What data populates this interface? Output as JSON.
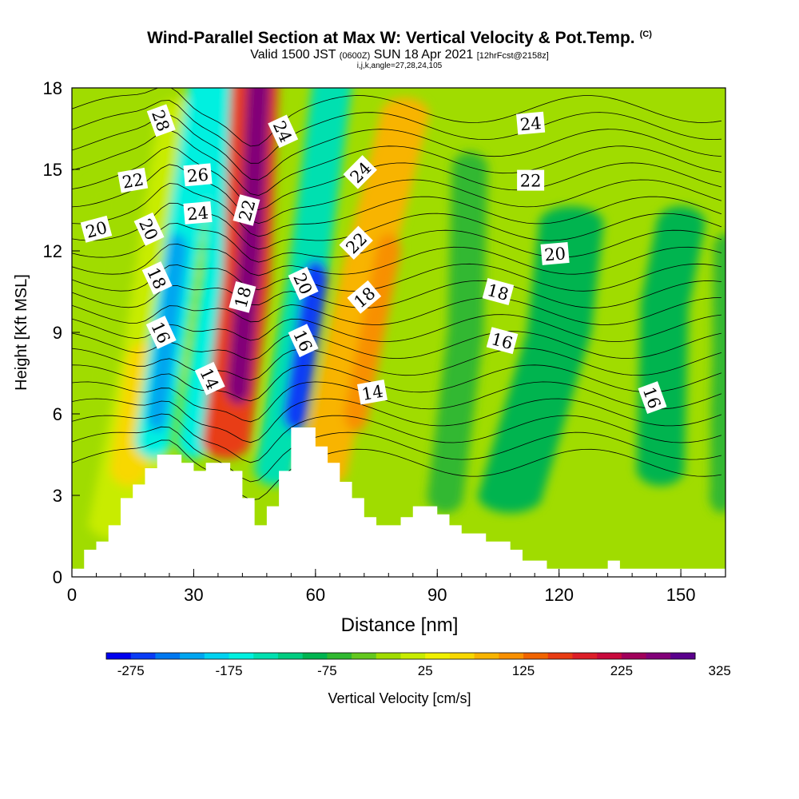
{
  "header": {
    "title": "Wind-Parallel Section at Max W: Vertical Velocity & Pot.Temp.",
    "title_mark": "(C)",
    "valid_prefix": "Valid 1500 JST",
    "valid_utc": "(0600Z)",
    "valid_date": "SUN 18 Apr 2021",
    "forecast": "[12hrFcst@2158z]",
    "indices": "i,j,k,angle=27,28,24,105"
  },
  "chart_data": {
    "type": "heatmap",
    "xlabel": "Distance [nm]",
    "ylabel": "Height [Kft MSL]",
    "xlim": [
      0,
      161
    ],
    "ylim": [
      0,
      18
    ],
    "x_ticks": [
      "0",
      "30",
      "60",
      "90",
      "120",
      "150"
    ],
    "y_ticks": [
      "0",
      "3",
      "6",
      "9",
      "12",
      "15",
      "18"
    ],
    "colorbar": {
      "label": "Vertical Velocity [cm/s]",
      "ticks": [
        "-275",
        "-175",
        "-75",
        "25",
        "125",
        "225",
        "325"
      ],
      "colors": [
        "#0000ee",
        "#0a3cf5",
        "#0078f0",
        "#00a5f0",
        "#00d2f0",
        "#00f0e0",
        "#00e0b0",
        "#00cc80",
        "#00b450",
        "#30b830",
        "#64c81e",
        "#a0dc00",
        "#c8ec00",
        "#f0f000",
        "#f8d800",
        "#f8b400",
        "#f89000",
        "#f06400",
        "#e83c14",
        "#dc1e28",
        "#c80a3c",
        "#a0005a",
        "#820078",
        "#5a008c"
      ],
      "bounds": [
        -300,
        350
      ]
    },
    "velocity_features": [
      {
        "x_nm": 24,
        "z_kft": 12,
        "cm_s": -175
      },
      {
        "x_nm": 31,
        "z_kft": 9,
        "cm_s": -150
      },
      {
        "x_nm": 44,
        "z_kft": 13,
        "cm_s": 330
      },
      {
        "x_nm": 59,
        "z_kft": 10,
        "cm_s": -260
      },
      {
        "x_nm": 71,
        "z_kft": 12,
        "cm_s": 140
      },
      {
        "x_nm": 118,
        "z_kft": 9,
        "cm_s": -70
      },
      {
        "x_nm": 145,
        "z_kft": 10,
        "cm_s": -60
      }
    ],
    "terrain": [
      {
        "x": 0,
        "h": 0.3
      },
      {
        "x": 3,
        "h": 1.0
      },
      {
        "x": 6,
        "h": 1.3
      },
      {
        "x": 9,
        "h": 1.9
      },
      {
        "x": 12,
        "h": 2.9
      },
      {
        "x": 15,
        "h": 3.4
      },
      {
        "x": 18,
        "h": 4.0
      },
      {
        "x": 21,
        "h": 4.5
      },
      {
        "x": 24,
        "h": 4.5
      },
      {
        "x": 27,
        "h": 4.2
      },
      {
        "x": 30,
        "h": 3.9
      },
      {
        "x": 33,
        "h": 4.2
      },
      {
        "x": 36,
        "h": 4.2
      },
      {
        "x": 39,
        "h": 3.9
      },
      {
        "x": 42,
        "h": 2.9
      },
      {
        "x": 45,
        "h": 1.9
      },
      {
        "x": 48,
        "h": 2.6
      },
      {
        "x": 51,
        "h": 3.9
      },
      {
        "x": 54,
        "h": 5.5
      },
      {
        "x": 57,
        "h": 5.5
      },
      {
        "x": 60,
        "h": 4.8
      },
      {
        "x": 63,
        "h": 4.2
      },
      {
        "x": 66,
        "h": 3.5
      },
      {
        "x": 69,
        "h": 2.9
      },
      {
        "x": 72,
        "h": 2.2
      },
      {
        "x": 75,
        "h": 1.9
      },
      {
        "x": 78,
        "h": 1.9
      },
      {
        "x": 81,
        "h": 2.2
      },
      {
        "x": 84,
        "h": 2.6
      },
      {
        "x": 87,
        "h": 2.6
      },
      {
        "x": 90,
        "h": 2.3
      },
      {
        "x": 93,
        "h": 1.9
      },
      {
        "x": 96,
        "h": 1.6
      },
      {
        "x": 99,
        "h": 1.6
      },
      {
        "x": 102,
        "h": 1.3
      },
      {
        "x": 105,
        "h": 1.3
      },
      {
        "x": 108,
        "h": 1.0
      },
      {
        "x": 111,
        "h": 0.6
      },
      {
        "x": 114,
        "h": 0.6
      },
      {
        "x": 117,
        "h": 0.3
      },
      {
        "x": 132,
        "h": 0.6
      },
      {
        "x": 135,
        "h": 0.3
      }
    ],
    "isentrope_labels": [
      {
        "text": "28",
        "x": 22,
        "z": 16.8,
        "rot": 70
      },
      {
        "text": "22",
        "x": 15,
        "z": 14.6,
        "rot": -10
      },
      {
        "text": "20",
        "x": 6,
        "z": 12.8,
        "rot": -15
      },
      {
        "text": "26",
        "x": 31,
        "z": 14.8,
        "rot": -5
      },
      {
        "text": "24",
        "x": 31,
        "z": 13.4,
        "rot": -5
      },
      {
        "text": "20",
        "x": 19,
        "z": 12.8,
        "rot": 65
      },
      {
        "text": "18",
        "x": 21,
        "z": 11.0,
        "rot": 65
      },
      {
        "text": "16",
        "x": 22,
        "z": 9.0,
        "rot": 65
      },
      {
        "text": "14",
        "x": 34,
        "z": 7.3,
        "rot": 65
      },
      {
        "text": "22",
        "x": 43,
        "z": 13.5,
        "rot": -75
      },
      {
        "text": "18",
        "x": 42,
        "z": 10.3,
        "rot": -75
      },
      {
        "text": "24",
        "x": 52,
        "z": 16.4,
        "rot": 65
      },
      {
        "text": "20",
        "x": 57,
        "z": 10.8,
        "rot": 65
      },
      {
        "text": "16",
        "x": 57,
        "z": 8.7,
        "rot": 65
      },
      {
        "text": "24",
        "x": 71,
        "z": 14.9,
        "rot": -45
      },
      {
        "text": "22",
        "x": 70,
        "z": 12.3,
        "rot": -45
      },
      {
        "text": "18",
        "x": 72,
        "z": 10.3,
        "rot": -40
      },
      {
        "text": "14",
        "x": 74,
        "z": 6.8,
        "rot": -10
      },
      {
        "text": "24",
        "x": 113,
        "z": 16.7,
        "rot": -5
      },
      {
        "text": "22",
        "x": 113,
        "z": 14.6,
        "rot": 0
      },
      {
        "text": "20",
        "x": 119,
        "z": 11.9,
        "rot": -5
      },
      {
        "text": "18",
        "x": 105,
        "z": 10.5,
        "rot": 15
      },
      {
        "text": "16",
        "x": 106,
        "z": 8.7,
        "rot": 15
      },
      {
        "text": "16",
        "x": 143,
        "z": 6.6,
        "rot": 70
      }
    ]
  }
}
